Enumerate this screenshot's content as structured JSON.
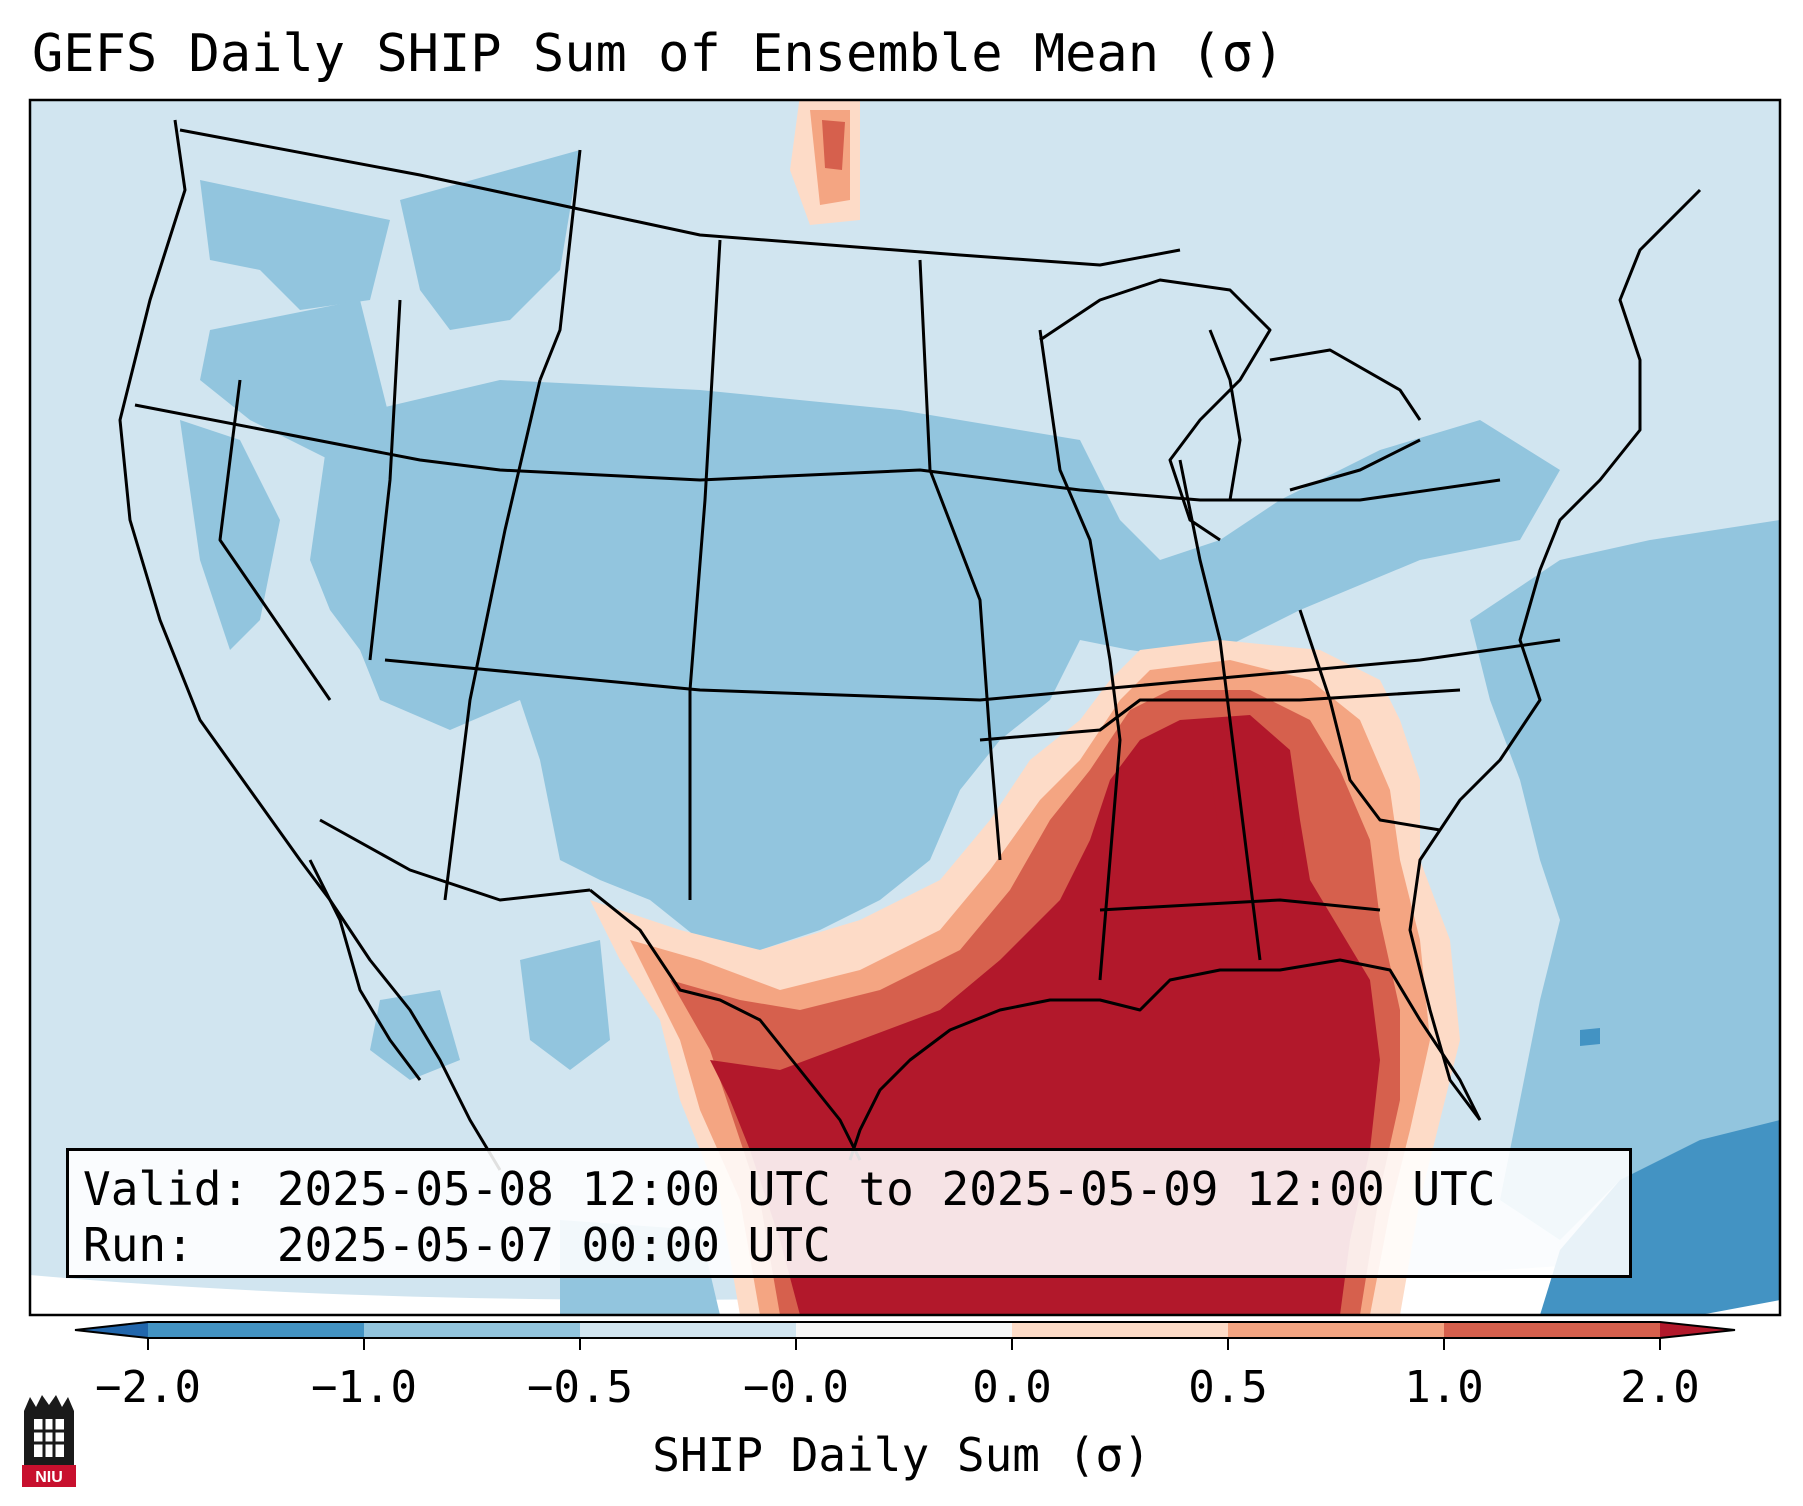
{
  "title": "GEFS Daily SHIP Sum of Ensemble Mean (σ)",
  "info": {
    "valid": "Valid: 2025-05-08 12:00 UTC to 2025-05-09 12:00 UTC",
    "run": "Run:   2025-05-07 00:00 UTC"
  },
  "colorbar": {
    "label": "SHIP Daily Sum (σ)",
    "ticks": [
      "−2.0",
      "−1.0",
      "−0.5",
      "−0.0",
      "0.0",
      "0.5",
      "1.0",
      "2.0"
    ],
    "bins": [
      {
        "from": "<-2.0",
        "color": "#2166ac"
      },
      {
        "from": "-2.0",
        "to": "-1.0",
        "color": "#4393c3"
      },
      {
        "from": "-1.0",
        "to": "-0.5",
        "color": "#92c5de"
      },
      {
        "from": "-0.5",
        "to": "-0.0",
        "color": "#d1e5f0"
      },
      {
        "from": "-0.0",
        "to": "0.0",
        "color": "#f7f7f7"
      },
      {
        "from": "0.0",
        "to": "0.5",
        "color": "#fddbc7"
      },
      {
        "from": "0.5",
        "to": "1.0",
        "color": "#f4a582"
      },
      {
        "from": "1.0",
        "to": "2.0",
        "color": "#d6604d"
      },
      {
        "from": ">2.0",
        "color": "#b2182b"
      }
    ]
  },
  "map": {
    "region": "Contiguous United States, Gulf of Mexico",
    "highlight": "Strong positive anomaly over Gulf Coast, Deep South and Gulf of Mexico; weak negative anomaly over central and western US"
  },
  "logo": {
    "text": "NIU",
    "color": "#c8102e"
  }
}
